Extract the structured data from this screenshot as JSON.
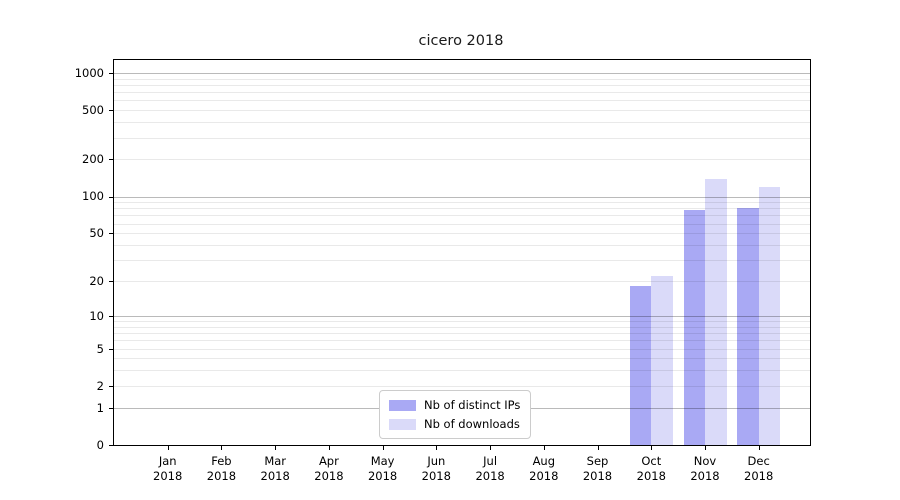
{
  "title": "cicero 2018",
  "chart_data": {
    "type": "bar",
    "title": "cicero 2018",
    "categories": [
      "Jan",
      "Feb",
      "Mar",
      "Apr",
      "May",
      "Jun",
      "Jul",
      "Aug",
      "Sep",
      "Oct",
      "Nov",
      "Dec"
    ],
    "year_label": "2018",
    "series": [
      {
        "name": "Nb of distinct IPs",
        "color": "#a9a9f4",
        "values": [
          0,
          0,
          0,
          0,
          0,
          0,
          0,
          0,
          0,
          18,
          78,
          80
        ]
      },
      {
        "name": "Nb of downloads",
        "color": "#dadaf9",
        "values": [
          0,
          0,
          0,
          0,
          0,
          0,
          0,
          0,
          0,
          22,
          140,
          120
        ]
      }
    ],
    "xlabel": "",
    "ylabel": "",
    "y_scale": "log1p",
    "y_ticks": [
      0,
      1,
      2,
      5,
      10,
      20,
      50,
      100,
      200,
      500,
      1000
    ],
    "ylim": [
      0,
      1280
    ],
    "grid": "horizontal, minor lines at 1-9, 10-90 step 10, 100-900 step 100; darker lines at 1, 10, 100, 1000",
    "legend_position": "inside lower-center-left",
    "colors": {
      "spine": "#000000",
      "grid_minor": "#e9e9e9",
      "grid_major": "#bbbbbb",
      "legend_border": "#cccccc",
      "background": "#ffffff"
    }
  }
}
